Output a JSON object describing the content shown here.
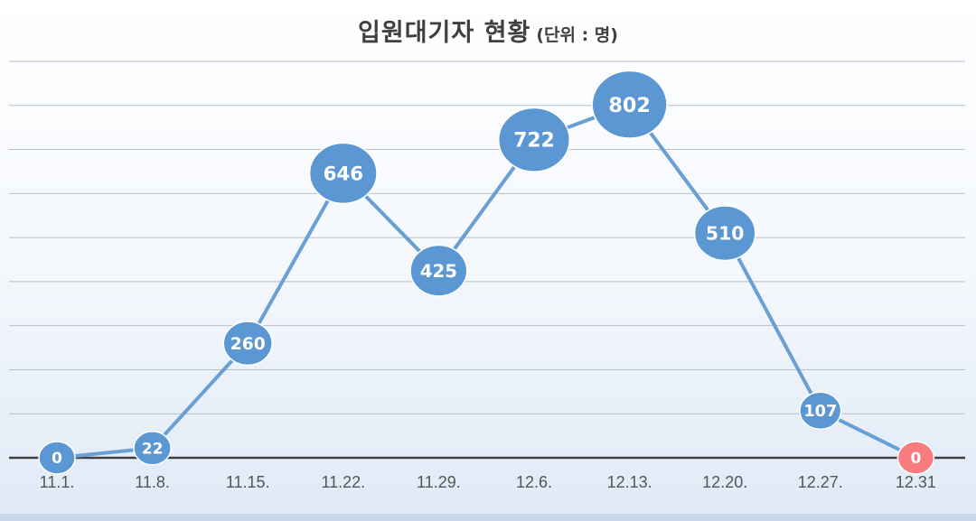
{
  "chart_data": {
    "type": "line",
    "title": "입원대기자 현황",
    "unit_note": "(단위 : 명)",
    "categories": [
      "11.1.",
      "11.8.",
      "11.15.",
      "11.22.",
      "11.29.",
      "12.6.",
      "12.13.",
      "12.20.",
      "12.27.",
      "12.31"
    ],
    "values": [
      0,
      22,
      260,
      646,
      425,
      722,
      802,
      510,
      107,
      0
    ],
    "highlight_index": 9,
    "grid": true,
    "legend": "none",
    "ylim": [
      0,
      900
    ],
    "colors": {
      "line": "#6a9fd4",
      "marker": "#5b97d3",
      "marker_highlight": "#f87b7d",
      "label": "#ffffff",
      "grid": "#b8bfc9",
      "axis": "#404040",
      "tick_label": "#555555"
    }
  }
}
